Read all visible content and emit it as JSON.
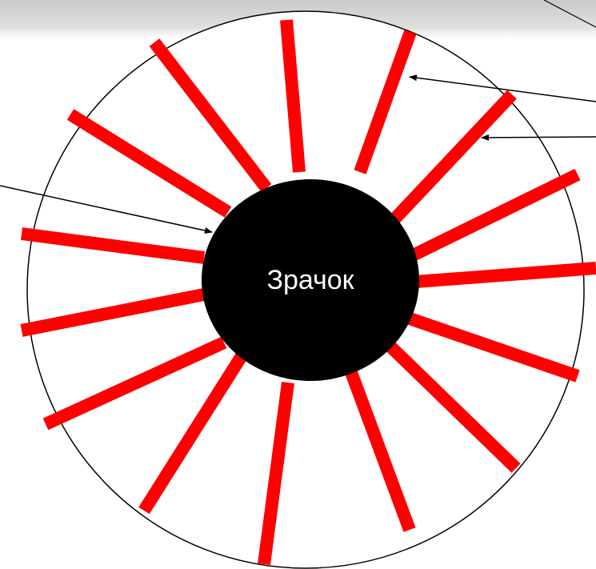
{
  "pupil": {
    "label": "Зрачок"
  }
}
